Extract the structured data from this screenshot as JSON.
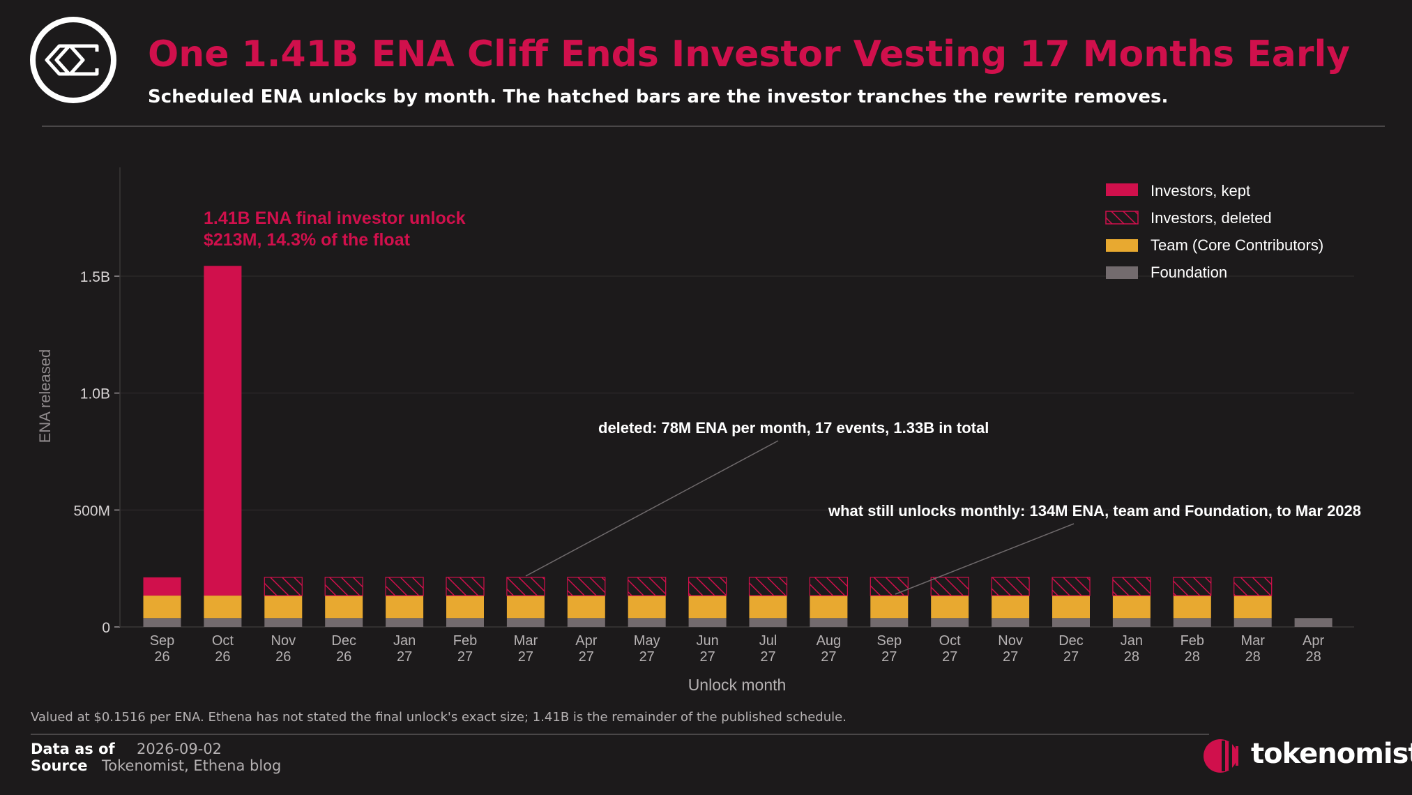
{
  "header": {
    "title": "One 1.41B ENA Cliff Ends Investor Vesting 17 Months Early",
    "subtitle": "Scheduled ENA unlocks by month. The hatched bars are the investor tranches the rewrite removes."
  },
  "colors": {
    "background": "#1c1a1b",
    "accent": "#d0104c",
    "investors_kept": "#d0104c",
    "investors_deleted": "#d0104c",
    "team": "#e8a930",
    "foundation": "#736b6e",
    "text_muted": "#b6b2b3"
  },
  "chart_data": {
    "type": "bar",
    "stacked": true,
    "xlabel": "Unlock month",
    "ylabel": "ENA released",
    "ylim": [
      0,
      1950000000
    ],
    "yticks": [
      0,
      500000000,
      1000000000,
      1500000000
    ],
    "ytick_labels": [
      "0",
      "500M",
      "1.0B",
      "1.5B"
    ],
    "grid": true,
    "legend_position": "top-right",
    "categories": [
      [
        "Sep",
        "26"
      ],
      [
        "Oct",
        "26"
      ],
      [
        "Nov",
        "26"
      ],
      [
        "Dec",
        "26"
      ],
      [
        "Jan",
        "27"
      ],
      [
        "Feb",
        "27"
      ],
      [
        "Mar",
        "27"
      ],
      [
        "Apr",
        "27"
      ],
      [
        "May",
        "27"
      ],
      [
        "Jun",
        "27"
      ],
      [
        "Jul",
        "27"
      ],
      [
        "Aug",
        "27"
      ],
      [
        "Sep",
        "27"
      ],
      [
        "Oct",
        "27"
      ],
      [
        "Nov",
        "27"
      ],
      [
        "Dec",
        "27"
      ],
      [
        "Jan",
        "28"
      ],
      [
        "Feb",
        "28"
      ],
      [
        "Mar",
        "28"
      ],
      [
        "Apr",
        "28"
      ]
    ],
    "series": [
      {
        "name": "Foundation",
        "key": "foundation",
        "pattern": "solid",
        "values": [
          38000000,
          38000000,
          38000000,
          38000000,
          38000000,
          38000000,
          38000000,
          38000000,
          38000000,
          38000000,
          38000000,
          38000000,
          38000000,
          38000000,
          38000000,
          38000000,
          38000000,
          38000000,
          38000000,
          38000000
        ]
      },
      {
        "name": "Team (Core Contributors)",
        "key": "team",
        "pattern": "solid",
        "values": [
          96000000,
          96000000,
          96000000,
          96000000,
          96000000,
          96000000,
          96000000,
          96000000,
          96000000,
          96000000,
          96000000,
          96000000,
          96000000,
          96000000,
          96000000,
          96000000,
          96000000,
          96000000,
          96000000,
          0
        ]
      },
      {
        "name": "Investors, kept",
        "key": "investors_kept",
        "pattern": "solid",
        "values": [
          78000000,
          1410000000,
          0,
          0,
          0,
          0,
          0,
          0,
          0,
          0,
          0,
          0,
          0,
          0,
          0,
          0,
          0,
          0,
          0,
          0
        ]
      },
      {
        "name": "Investors, deleted",
        "key": "investors_deleted",
        "pattern": "hatched",
        "values": [
          0,
          0,
          78000000,
          78000000,
          78000000,
          78000000,
          78000000,
          78000000,
          78000000,
          78000000,
          78000000,
          78000000,
          78000000,
          78000000,
          78000000,
          78000000,
          78000000,
          78000000,
          78000000,
          0
        ]
      }
    ],
    "legend_order": [
      "investors_kept",
      "investors_deleted",
      "team",
      "foundation"
    ],
    "annotations": {
      "peak_line1": "1.41B ENA final investor unlock",
      "peak_line2": "$213M, 14.3% of the float",
      "deleted": "deleted: 78M ENA per month, 17 events, 1.33B in total",
      "remaining": "what still unlocks monthly: 134M ENA, team and Foundation, to Mar 2028"
    }
  },
  "footer": {
    "note": "Valued at $0.1516 per ENA. Ethena has not stated the final unlock's exact size; 1.41B is the remainder of the published schedule.",
    "data_as_of_label": "Data as of",
    "data_as_of_value": "2026-09-02",
    "source_label": "Source",
    "source_value": "Tokenomist, Ethena blog",
    "brand": "tokenomist",
    "icon": "ethena-logo-icon",
    "brand_icon": "tokenomist-logo-icon"
  }
}
